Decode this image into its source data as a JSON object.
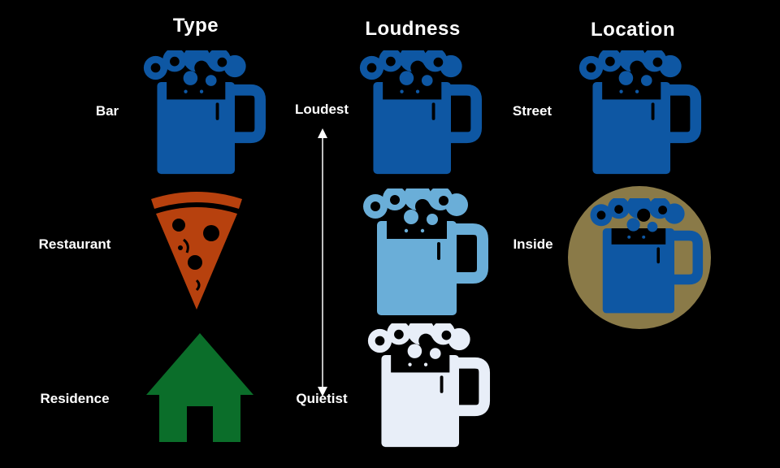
{
  "columns": {
    "type": "Type",
    "loudness": "Loudness",
    "location": "Location"
  },
  "type_labels": {
    "bar": "Bar",
    "restaurant": "Restaurant",
    "residence": "Residence"
  },
  "loudness_labels": {
    "loudest": "Loudest",
    "quietist": "Quietist"
  },
  "location_labels": {
    "street": "Street",
    "inside": "Inside"
  },
  "icons": {
    "bar": "beer-mug-icon",
    "restaurant": "pizza-slice-icon",
    "residence": "house-icon"
  },
  "colors": {
    "background": "#000000",
    "text": "#ffffff",
    "loud": "#0e57a3",
    "medium": "#6aaed8",
    "quiet": "#e8eef8",
    "pizza": "#b7410e",
    "house": "#0b6e2a",
    "inside_circle": "#8a7a48"
  }
}
